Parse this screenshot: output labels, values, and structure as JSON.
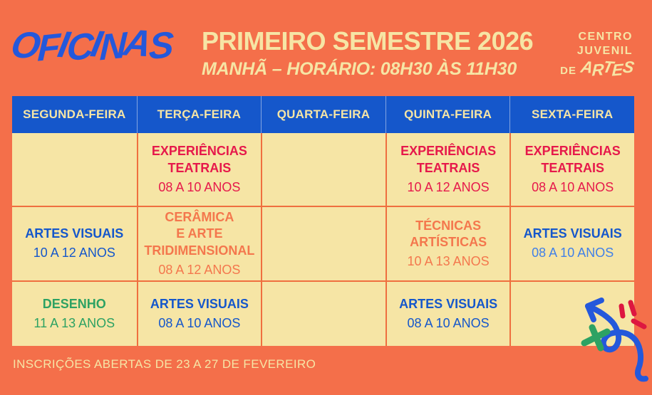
{
  "header": {
    "brand": "OFICINAS",
    "title": "PRIMEIRO SEMESTRE 2026",
    "subtitle": "MANHÃ – HORÁRIO: 08H30 ÀS 11H30",
    "logo": {
      "line1": "CENTRO",
      "line2": "JUVENIL",
      "line3_prefix": "DE",
      "line3_brand": "ARTES"
    }
  },
  "schedule": {
    "days": [
      "SEGUNDA-FEIRA",
      "TERÇA-FEIRA",
      "QUARTA-FEIRA",
      "QUINTA-FEIRA",
      "SEXTA-FEIRA"
    ],
    "rows": [
      {
        "cells": [
          {
            "title": "",
            "age": ""
          },
          {
            "title": "EXPERIÊNCIAS\nTEATRAIS",
            "age": "08 A 10 ANOS",
            "accent": "red"
          },
          {
            "title": "",
            "age": ""
          },
          {
            "title": "EXPERIÊNCIAS\nTEATRAIS",
            "age": "10 A 12 ANOS",
            "accent": "red"
          },
          {
            "title": "EXPERIÊNCIAS\nTEATRAIS",
            "age": "08 A 10 ANOS",
            "accent": "red"
          }
        ]
      },
      {
        "cells": [
          {
            "title": "ARTES VISUAIS",
            "age": "10 A 12 ANOS",
            "accent": "blue"
          },
          {
            "title": "CERÂMICA\nE ARTE\nTRIDIMENSIONAL",
            "age": "08 A 12 ANOS",
            "accent": "orange"
          },
          {
            "title": "",
            "age": ""
          },
          {
            "title": "TÉCNICAS\nARTÍSTICAS",
            "age": "10 A 13 ANOS",
            "accent": "orange"
          },
          {
            "title": "ARTES VISUAIS",
            "age": "08 A 10 ANOS",
            "accent": "blue",
            "age_accent": "light_blue"
          }
        ]
      },
      {
        "cells": [
          {
            "title": "DESENHO",
            "age": "11 A 13 ANOS",
            "accent": "green"
          },
          {
            "title": "ARTES VISUAIS",
            "age": "08 A 10 ANOS",
            "accent": "blue"
          },
          {
            "title": "",
            "age": ""
          },
          {
            "title": "ARTES VISUAIS",
            "age": "08 A 10 ANOS",
            "accent": "blue"
          },
          {
            "title": "",
            "age": ""
          }
        ]
      }
    ]
  },
  "footer": {
    "note": "INSCRIÇÕES ABERTAS DE 23 A 27 DE FEVEREIRO"
  },
  "colors": {
    "bg_orange": "#F46F4A",
    "cream": "#F6E5A5",
    "brand_blue": "#2458DB",
    "table_blue": "#1557CB",
    "grid_orange": "#EF6F3F",
    "red": "#E6194B",
    "orange": "#F4774D",
    "green": "#2DA263",
    "light_blue": "#4180E8",
    "doodle_red": "#DD1740"
  }
}
